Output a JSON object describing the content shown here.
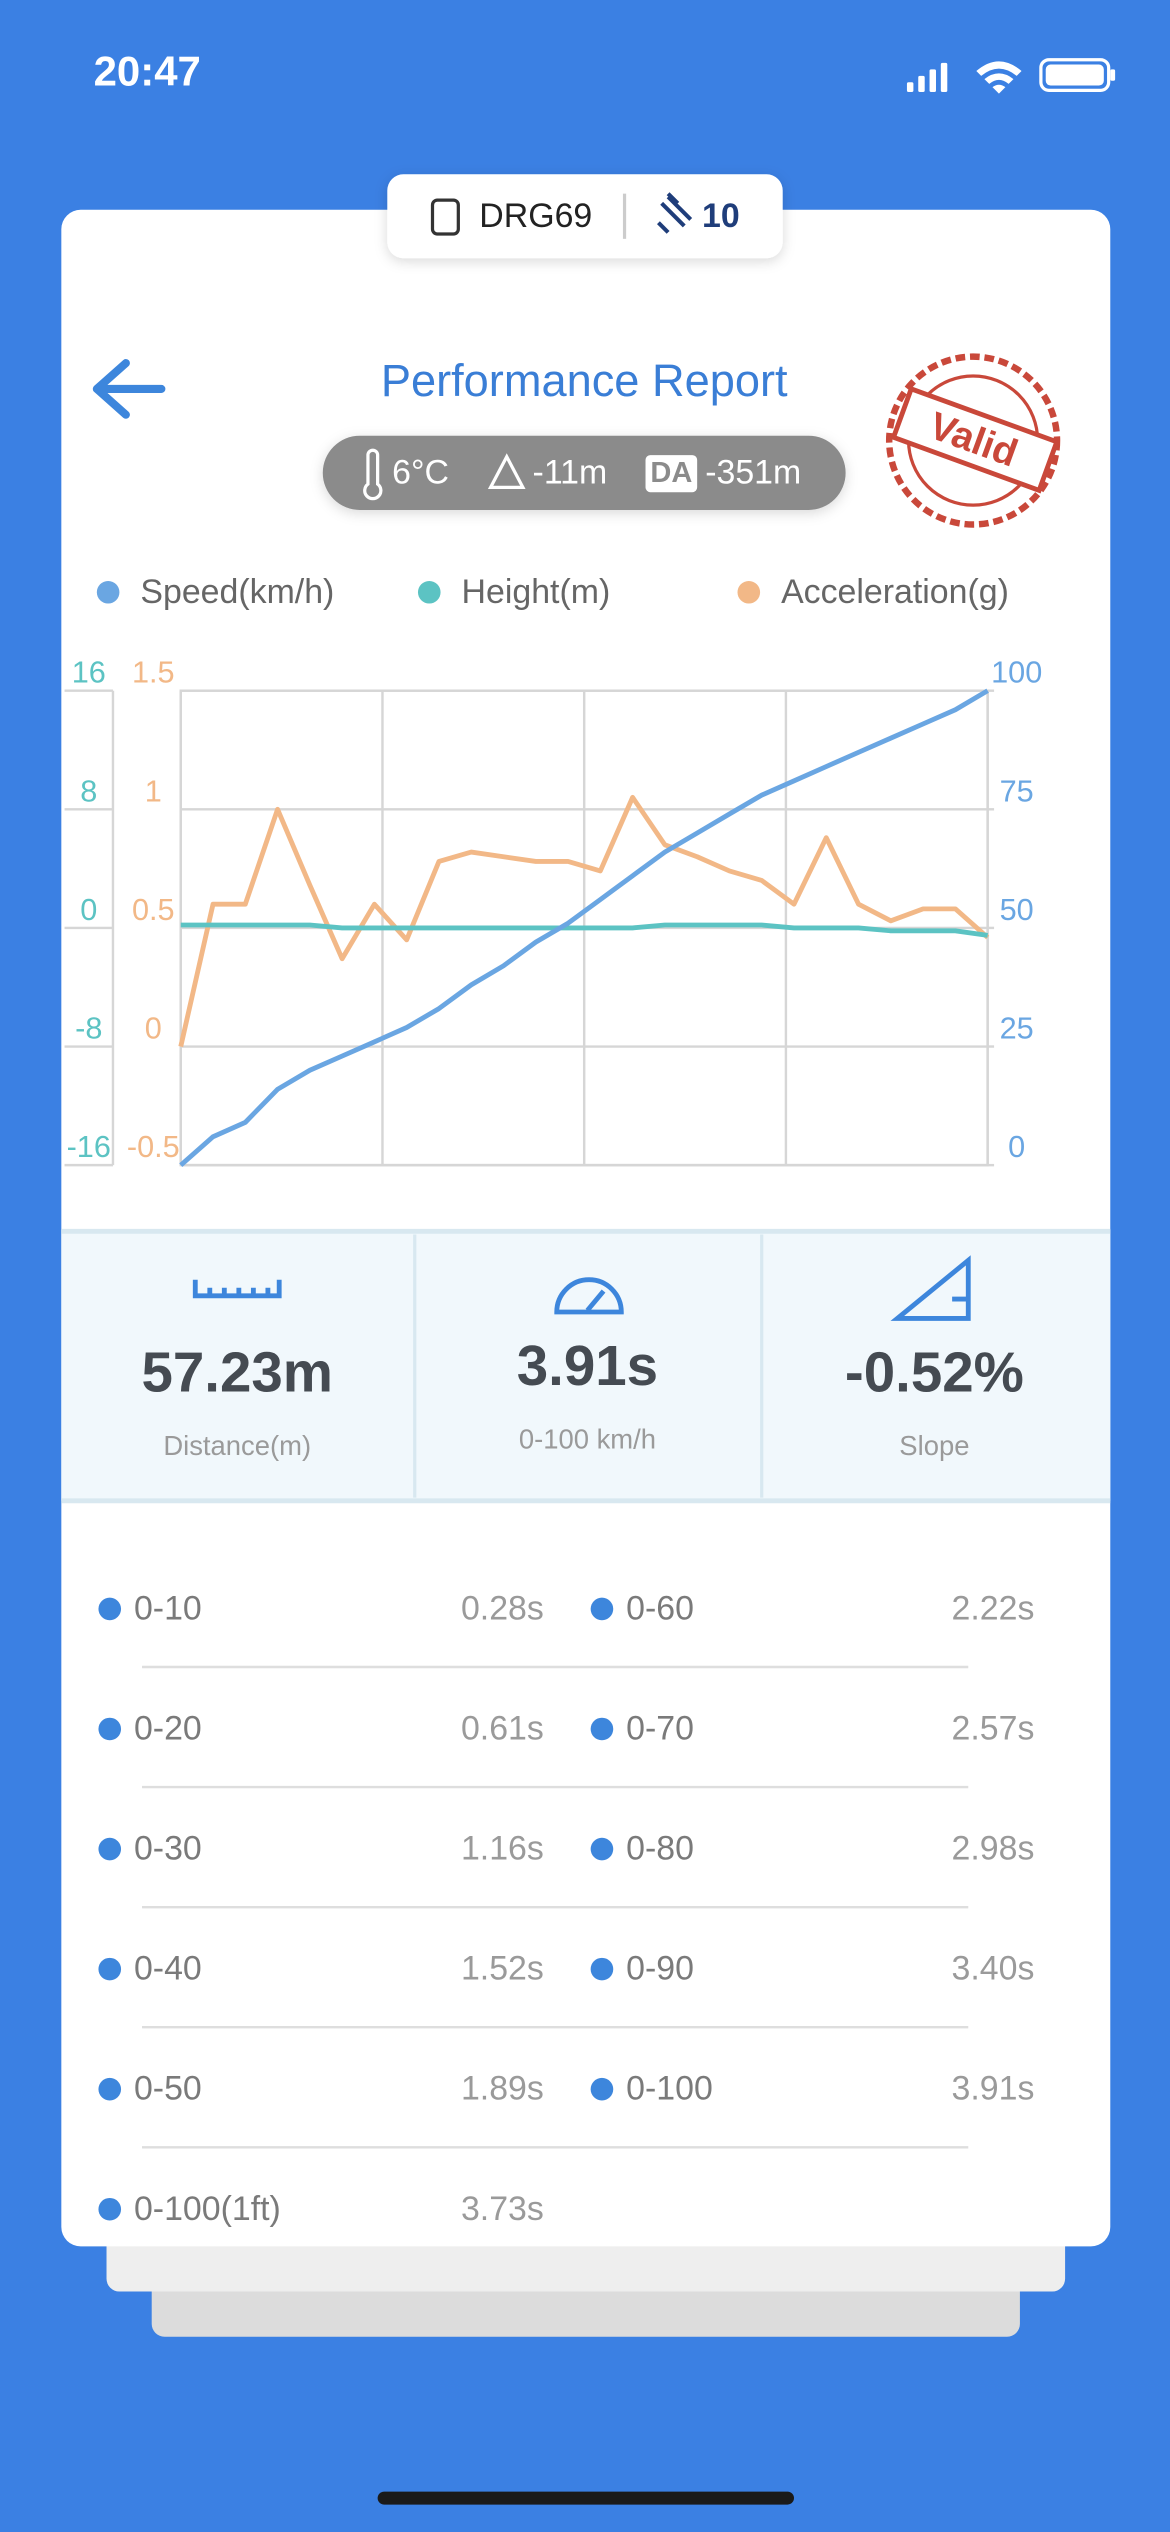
{
  "status_bar": {
    "time": "20:47"
  },
  "device": {
    "name": "DRG69",
    "satellites": "10"
  },
  "header": {
    "title": "Performance Report",
    "stamp": "Valid"
  },
  "conditions": {
    "temperature": "6°C",
    "altitude": "-11m",
    "da_label": "DA",
    "density_altitude": "-351m"
  },
  "chart_data": {
    "type": "line",
    "series": [
      {
        "name": "Speed(km/h)",
        "color": "#6aa6e2",
        "axis": "y2",
        "values": [
          0,
          6,
          9,
          16,
          20,
          23,
          26,
          29,
          33,
          38,
          42,
          47,
          51,
          56,
          61,
          66,
          70,
          74,
          78,
          81,
          84,
          87,
          90,
          93,
          96,
          100
        ]
      },
      {
        "name": "Height(m)",
        "color": "#5cc3c3",
        "axis": "y3",
        "values": [
          0.2,
          0.2,
          0.2,
          0.2,
          0.2,
          0,
          0,
          0,
          0,
          0,
          0,
          0,
          0,
          0,
          0,
          0.2,
          0.2,
          0.2,
          0.2,
          0,
          0,
          0,
          -0.2,
          -0.2,
          -0.2,
          -0.5
        ]
      },
      {
        "name": "Acceleration(g)",
        "color": "#f2b887",
        "values": [
          0,
          0.6,
          0.6,
          1.0,
          0.68,
          0.37,
          0.6,
          0.45,
          0.78,
          0.82,
          0.8,
          0.78,
          0.78,
          0.74,
          1.05,
          0.85,
          0.8,
          0.74,
          0.7,
          0.6,
          0.88,
          0.6,
          0.53,
          0.58,
          0.58,
          0.46
        ]
      }
    ],
    "ylim": [
      -0.5,
      1.5
    ],
    "yticks": [
      1.5,
      1,
      0.5,
      0,
      -0.5
    ],
    "y2lim": [
      0,
      100
    ],
    "y2ticks": [
      100,
      75,
      50,
      25,
      0
    ],
    "y3lim": [
      -16,
      16
    ],
    "y3ticks": [
      16,
      8,
      0,
      -8,
      -16
    ],
    "grid": true
  },
  "summary": [
    {
      "value": "57.23m",
      "label": "Distance(m)"
    },
    {
      "value": "3.91s",
      "label": "0-100 km/h"
    },
    {
      "value": "-0.52%",
      "label": "Slope"
    }
  ],
  "splits": [
    {
      "label": "0-10",
      "time": "0.28s"
    },
    {
      "label": "0-20",
      "time": "0.61s"
    },
    {
      "label": "0-30",
      "time": "1.16s"
    },
    {
      "label": "0-40",
      "time": "1.52s"
    },
    {
      "label": "0-50",
      "time": "1.89s"
    },
    {
      "label": "0-60",
      "time": "2.22s"
    },
    {
      "label": "0-70",
      "time": "2.57s"
    },
    {
      "label": "0-80",
      "time": "2.98s"
    },
    {
      "label": "0-90",
      "time": "3.40s"
    },
    {
      "label": "0-100",
      "time": "3.91s"
    },
    {
      "label": "0-100(1ft)",
      "time": "3.73s"
    }
  ]
}
